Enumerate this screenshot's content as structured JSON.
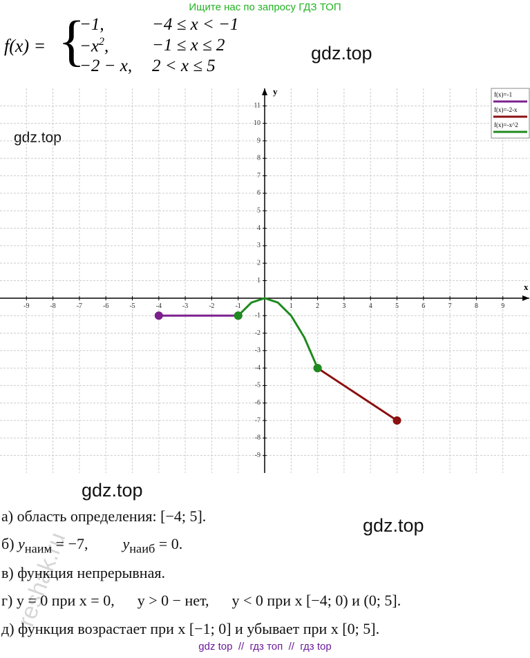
{
  "header": {
    "banner": "Ищите нас по запросу ГДЗ ТОП"
  },
  "formula": {
    "lhs": "f(x) =",
    "rows": [
      {
        "value": "−1,",
        "condition": "−4 ≤ x < −1"
      },
      {
        "value": "−x",
        "exponent": "2",
        "suffix": ",",
        "condition": "−1 ≤ x ≤ 2"
      },
      {
        "value": "−2 − x,",
        "condition": "2 < x ≤ 5"
      }
    ]
  },
  "watermarks": [
    "gdz.top",
    "gdz.top",
    "gdz.top",
    "gdz.top",
    "reshak.ru"
  ],
  "chart_data": {
    "type": "line",
    "x_label": "x",
    "y_label": "y",
    "xlim": [
      -10,
      10
    ],
    "ylim": [
      -10,
      12
    ],
    "xticks": [
      -9,
      -8,
      -7,
      -6,
      -5,
      -4,
      -3,
      -2,
      -1,
      1,
      2,
      3,
      4,
      5,
      6,
      7,
      8,
      9
    ],
    "yticks": [
      -9,
      -8,
      -7,
      -6,
      -5,
      -4,
      -3,
      -2,
      -1,
      1,
      2,
      3,
      4,
      5,
      6,
      7,
      8,
      9,
      10,
      11
    ],
    "grid": true,
    "legend": "top-right",
    "series": [
      {
        "name": "f(x)=-1",
        "color": "#7b1f8c",
        "x": [
          -4,
          -1
        ],
        "values": [
          -1,
          -1
        ]
      },
      {
        "name": "f(x)=-2-x",
        "color": "#8b1010",
        "x": [
          2,
          5
        ],
        "values": [
          -4,
          -7
        ]
      },
      {
        "name": "f(x)=-x^2",
        "color": "#1f8a1f",
        "x": [
          -1,
          -0.5,
          0,
          0.5,
          1,
          1.5,
          2
        ],
        "values": [
          -1,
          -0.25,
          0,
          -0.25,
          -1,
          -2.25,
          -4
        ]
      }
    ]
  },
  "answers": {
    "a": "а) область определения: [−4; 5].",
    "b": {
      "prefix": "б)",
      "min_var": "y",
      "min_sub": "наим",
      "min_val": "= −7,",
      "max_var": "y",
      "max_sub": "наиб",
      "max_val": "= 0."
    },
    "c": "в) функция непрерывная.",
    "d": "г) y = 0 при x = 0,      y > 0 − нет,      y < 0 при x [−4; 0) и (0; 5].",
    "e": "д) функция возрастает при x [−1; 0] и убывает при x [0; 5]."
  },
  "footer": "gdz top  //  гдз топ  //  гдз top"
}
